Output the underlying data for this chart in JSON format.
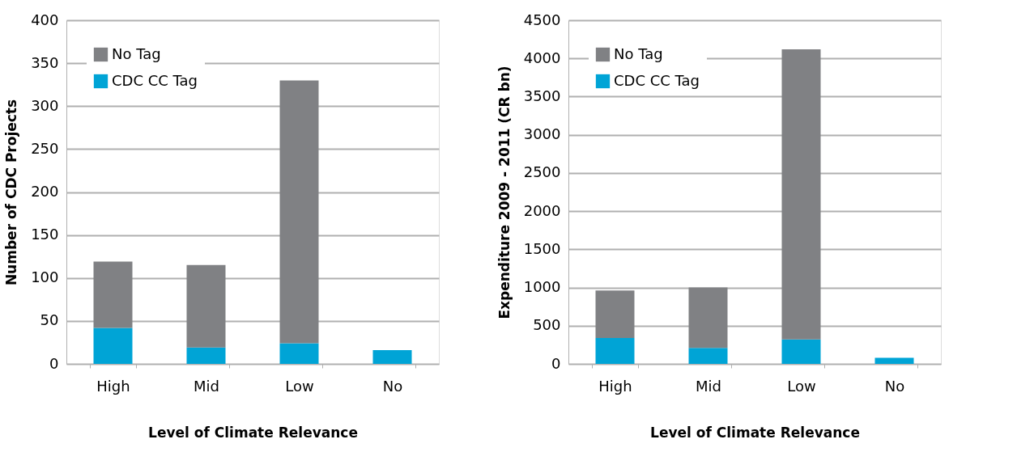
{
  "chart_data": [
    {
      "type": "bar",
      "stacked": true,
      "xlabel": "Level of Climate Relevance",
      "ylabel": "Number of CDC Projects",
      "categories": [
        "High",
        "Mid",
        "Low",
        "No"
      ],
      "ylim": [
        0,
        400
      ],
      "yticks": [
        0,
        50,
        100,
        150,
        200,
        250,
        300,
        350,
        400
      ],
      "grid": "y",
      "legend": "top left",
      "series": [
        {
          "name": "CDC CC Tag",
          "color": "#00a4d6",
          "values": [
            42,
            19,
            24,
            16
          ]
        },
        {
          "name": "No Tag",
          "color": "#808184",
          "values": [
            77,
            96,
            306,
            0
          ]
        }
      ]
    },
    {
      "type": "bar",
      "stacked": true,
      "xlabel": "Level of Climate Relevance",
      "ylabel": "Expenditure 2009 - 2011 (CR bn)",
      "categories": [
        "High",
        "Mid",
        "Low",
        "No"
      ],
      "ylim": [
        0,
        4500
      ],
      "yticks": [
        0,
        500,
        1000,
        1500,
        2000,
        2500,
        3000,
        3500,
        4000,
        4500
      ],
      "grid": "y",
      "legend": "top left",
      "series": [
        {
          "name": "CDC CC Tag",
          "color": "#00a4d6",
          "values": [
            340,
            210,
            320,
            80
          ]
        },
        {
          "name": "No Tag",
          "color": "#808184",
          "values": [
            620,
            790,
            3800,
            0
          ]
        }
      ]
    }
  ]
}
